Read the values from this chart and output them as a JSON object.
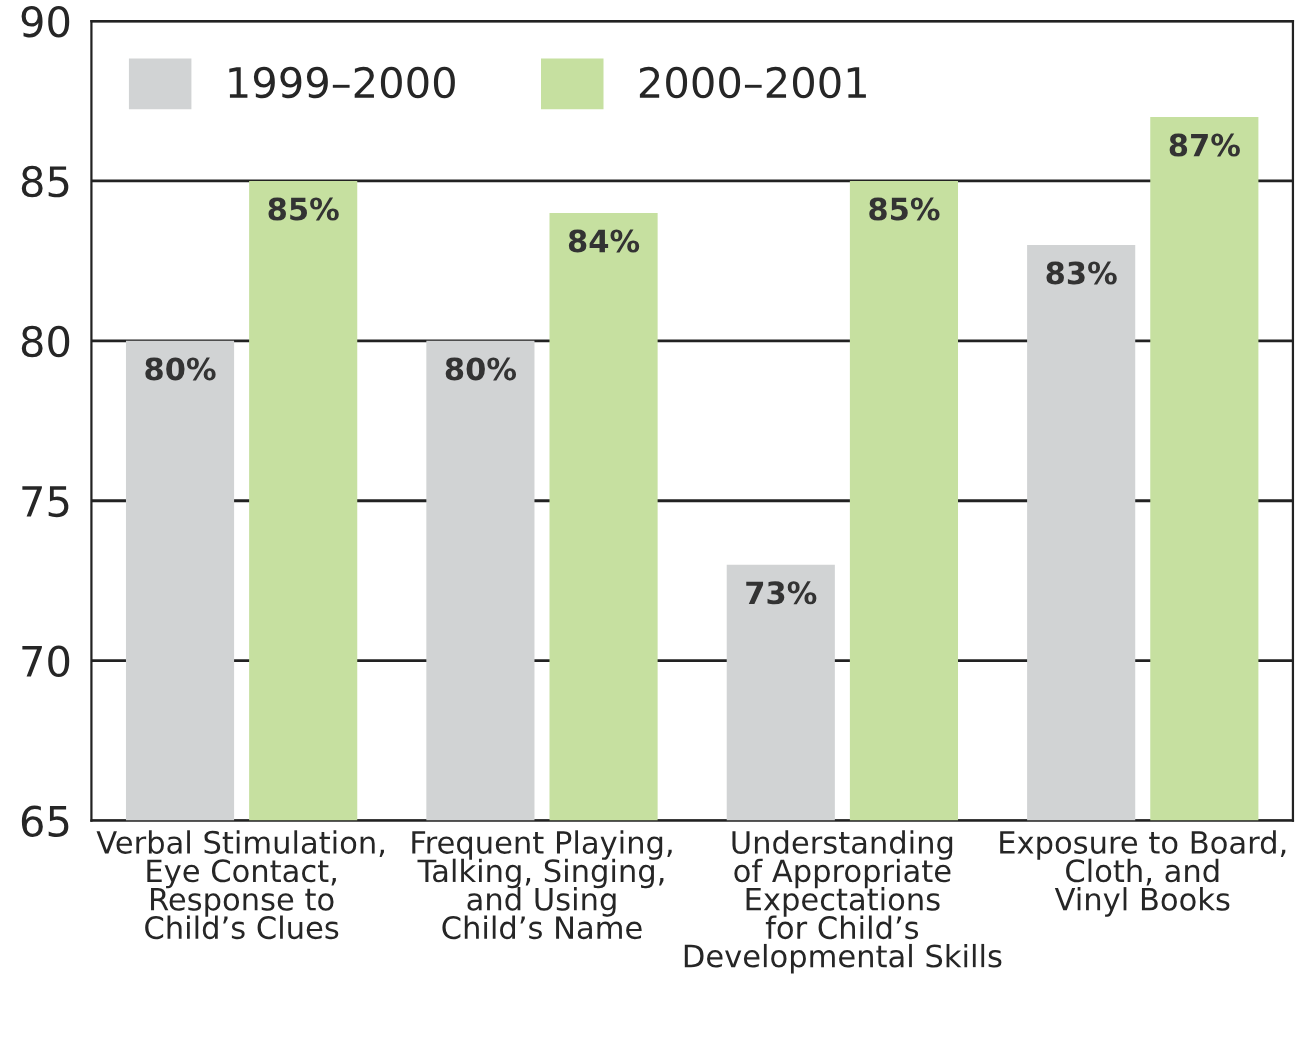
{
  "chart_data": {
    "type": "bar",
    "categories": [
      "Verbal Stimulation,\nEye Contact,\nResponse to\nChild’s Clues",
      "Frequent Playing,\nTalking, Singing,\nand Using\nChild’s Name",
      "Understanding\nof Appropriate\nExpectations\nfor Child’s\nDevelopmental Skills",
      "Exposure to Board,\nCloth, and\nVinyl Books"
    ],
    "series": [
      {
        "name": "1999–2000",
        "color": "#d1d3d4",
        "values": [
          80,
          80,
          73,
          83
        ],
        "value_labels": [
          "80%",
          "80%",
          "73%",
          "83%"
        ]
      },
      {
        "name": "2000–2001",
        "color": "#c6e0a0",
        "values": [
          85,
          84,
          85,
          87
        ],
        "value_labels": [
          "85%",
          "84%",
          "85%",
          "87%"
        ]
      }
    ],
    "ylim": [
      65,
      90
    ],
    "yticks": [
      65,
      70,
      75,
      80,
      85,
      90
    ],
    "grid": "y",
    "legend": "top left"
  }
}
